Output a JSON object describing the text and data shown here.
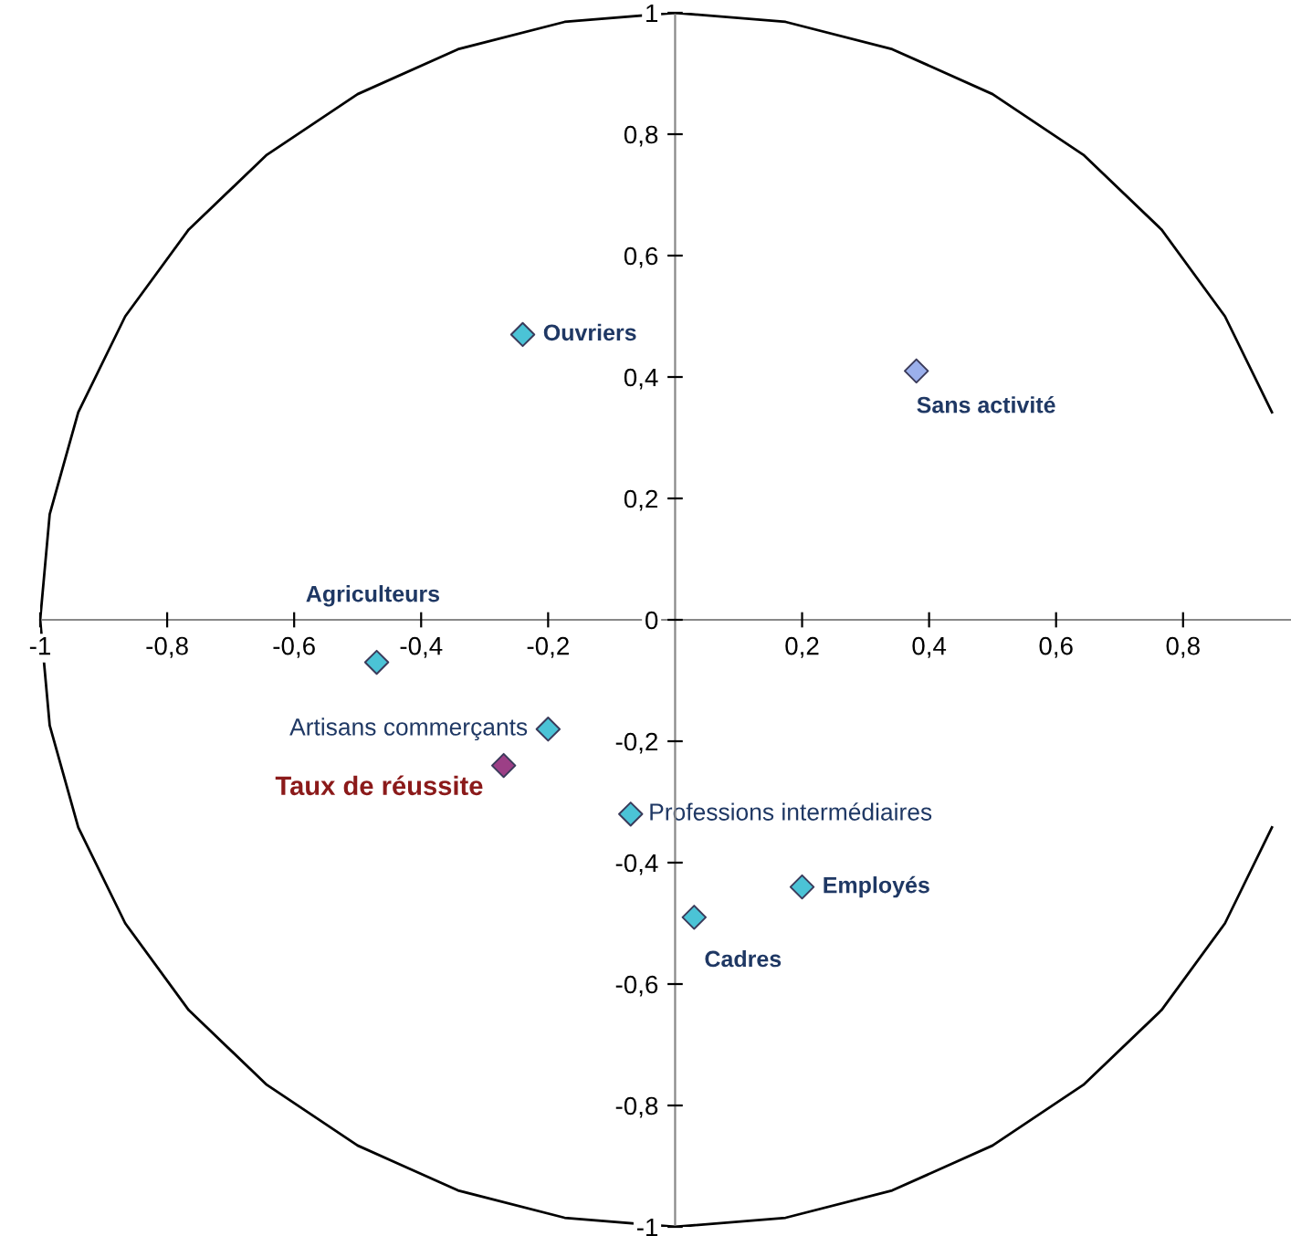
{
  "chart_data": {
    "type": "scatter",
    "marker": "diamond",
    "grid": false,
    "legend": false,
    "xlim": [
      -1,
      0.97
    ],
    "ylim": [
      -1,
      1
    ],
    "xticks": [
      {
        "value": -1,
        "label": "-1"
      },
      {
        "value": -0.8,
        "label": "-0,8"
      },
      {
        "value": -0.6,
        "label": "-0,6"
      },
      {
        "value": -0.4,
        "label": "-0,4"
      },
      {
        "value": -0.2,
        "label": "-0,2"
      },
      {
        "value": 0.2,
        "label": "0,2"
      },
      {
        "value": 0.4,
        "label": "0,4"
      },
      {
        "value": 0.6,
        "label": "0,6"
      },
      {
        "value": 0.8,
        "label": "0,8"
      }
    ],
    "yticks": [
      {
        "value": -1,
        "label": "-1"
      },
      {
        "value": -0.8,
        "label": "-0,8"
      },
      {
        "value": -0.6,
        "label": "-0,6"
      },
      {
        "value": -0.4,
        "label": "-0,4"
      },
      {
        "value": -0.2,
        "label": "-0,2"
      },
      0,
      {
        "value": 0.2,
        "label": "0,2"
      },
      {
        "value": 0.4,
        "label": "0,4"
      },
      {
        "value": 0.6,
        "label": "0,6"
      },
      {
        "value": 0.8,
        "label": "0,8"
      },
      1
    ],
    "series": [
      {
        "type": "line",
        "marker": "none",
        "color": "#000000",
        "x": [
          null,
          null,
          0.94,
          0.866,
          0.766,
          0.643,
          0.5,
          0.342,
          0.174,
          0,
          -0.174,
          -0.342,
          -0.5,
          -0.643,
          -0.766,
          -0.866,
          -0.94,
          -0.985,
          -1,
          -0.985,
          -0.94,
          -0.866,
          -0.766,
          -0.643,
          -0.5,
          -0.342,
          -0.174,
          0,
          0.174,
          0.342,
          0.5,
          0.643,
          0.766,
          0.866,
          0.94,
          null,
          null
        ],
        "values": [
          null,
          null,
          0.342,
          0.5,
          0.643,
          0.766,
          0.866,
          0.94,
          0.985,
          1,
          0.985,
          0.94,
          0.866,
          0.766,
          0.643,
          0.5,
          0.342,
          0.174,
          0,
          -0.174,
          -0.342,
          -0.5,
          -0.643,
          -0.766,
          -0.866,
          -0.94,
          -0.985,
          -1,
          -0.985,
          -0.94,
          -0.866,
          -0.766,
          -0.643,
          -0.5,
          -0.342,
          null,
          null
        ]
      },
      {
        "name": "Ouvriers",
        "color": "#4bc3d6",
        "x": [
          -0.24
        ],
        "values": [
          0.47
        ]
      },
      {
        "name": "Sans activité",
        "color": "#9bb0ec",
        "x": [
          0.38
        ],
        "values": [
          0.41
        ]
      },
      {
        "name": "Agriculteurs",
        "color": "#4bc3d6",
        "x": [
          -0.47
        ],
        "values": [
          -0.07
        ]
      },
      {
        "name": "Artisans commerçants",
        "color": "#4bc3d6",
        "x": [
          -0.2
        ],
        "values": [
          -0.18
        ]
      },
      {
        "name": "Taux de réussite",
        "color": "#9c3f86",
        "x": [
          -0.27
        ],
        "values": [
          -0.24
        ]
      },
      {
        "name": "Professions intermédiaires",
        "color": "#4bc3d6",
        "x": [
          -0.07
        ],
        "values": [
          -0.32
        ]
      },
      {
        "name": "Employés",
        "color": "#4bc3d6",
        "x": [
          0.2
        ],
        "values": [
          -0.44
        ]
      },
      {
        "name": "Cadres",
        "color": "#4bc3d6",
        "x": [
          0.03
        ],
        "values": [
          -0.49
        ]
      }
    ]
  }
}
